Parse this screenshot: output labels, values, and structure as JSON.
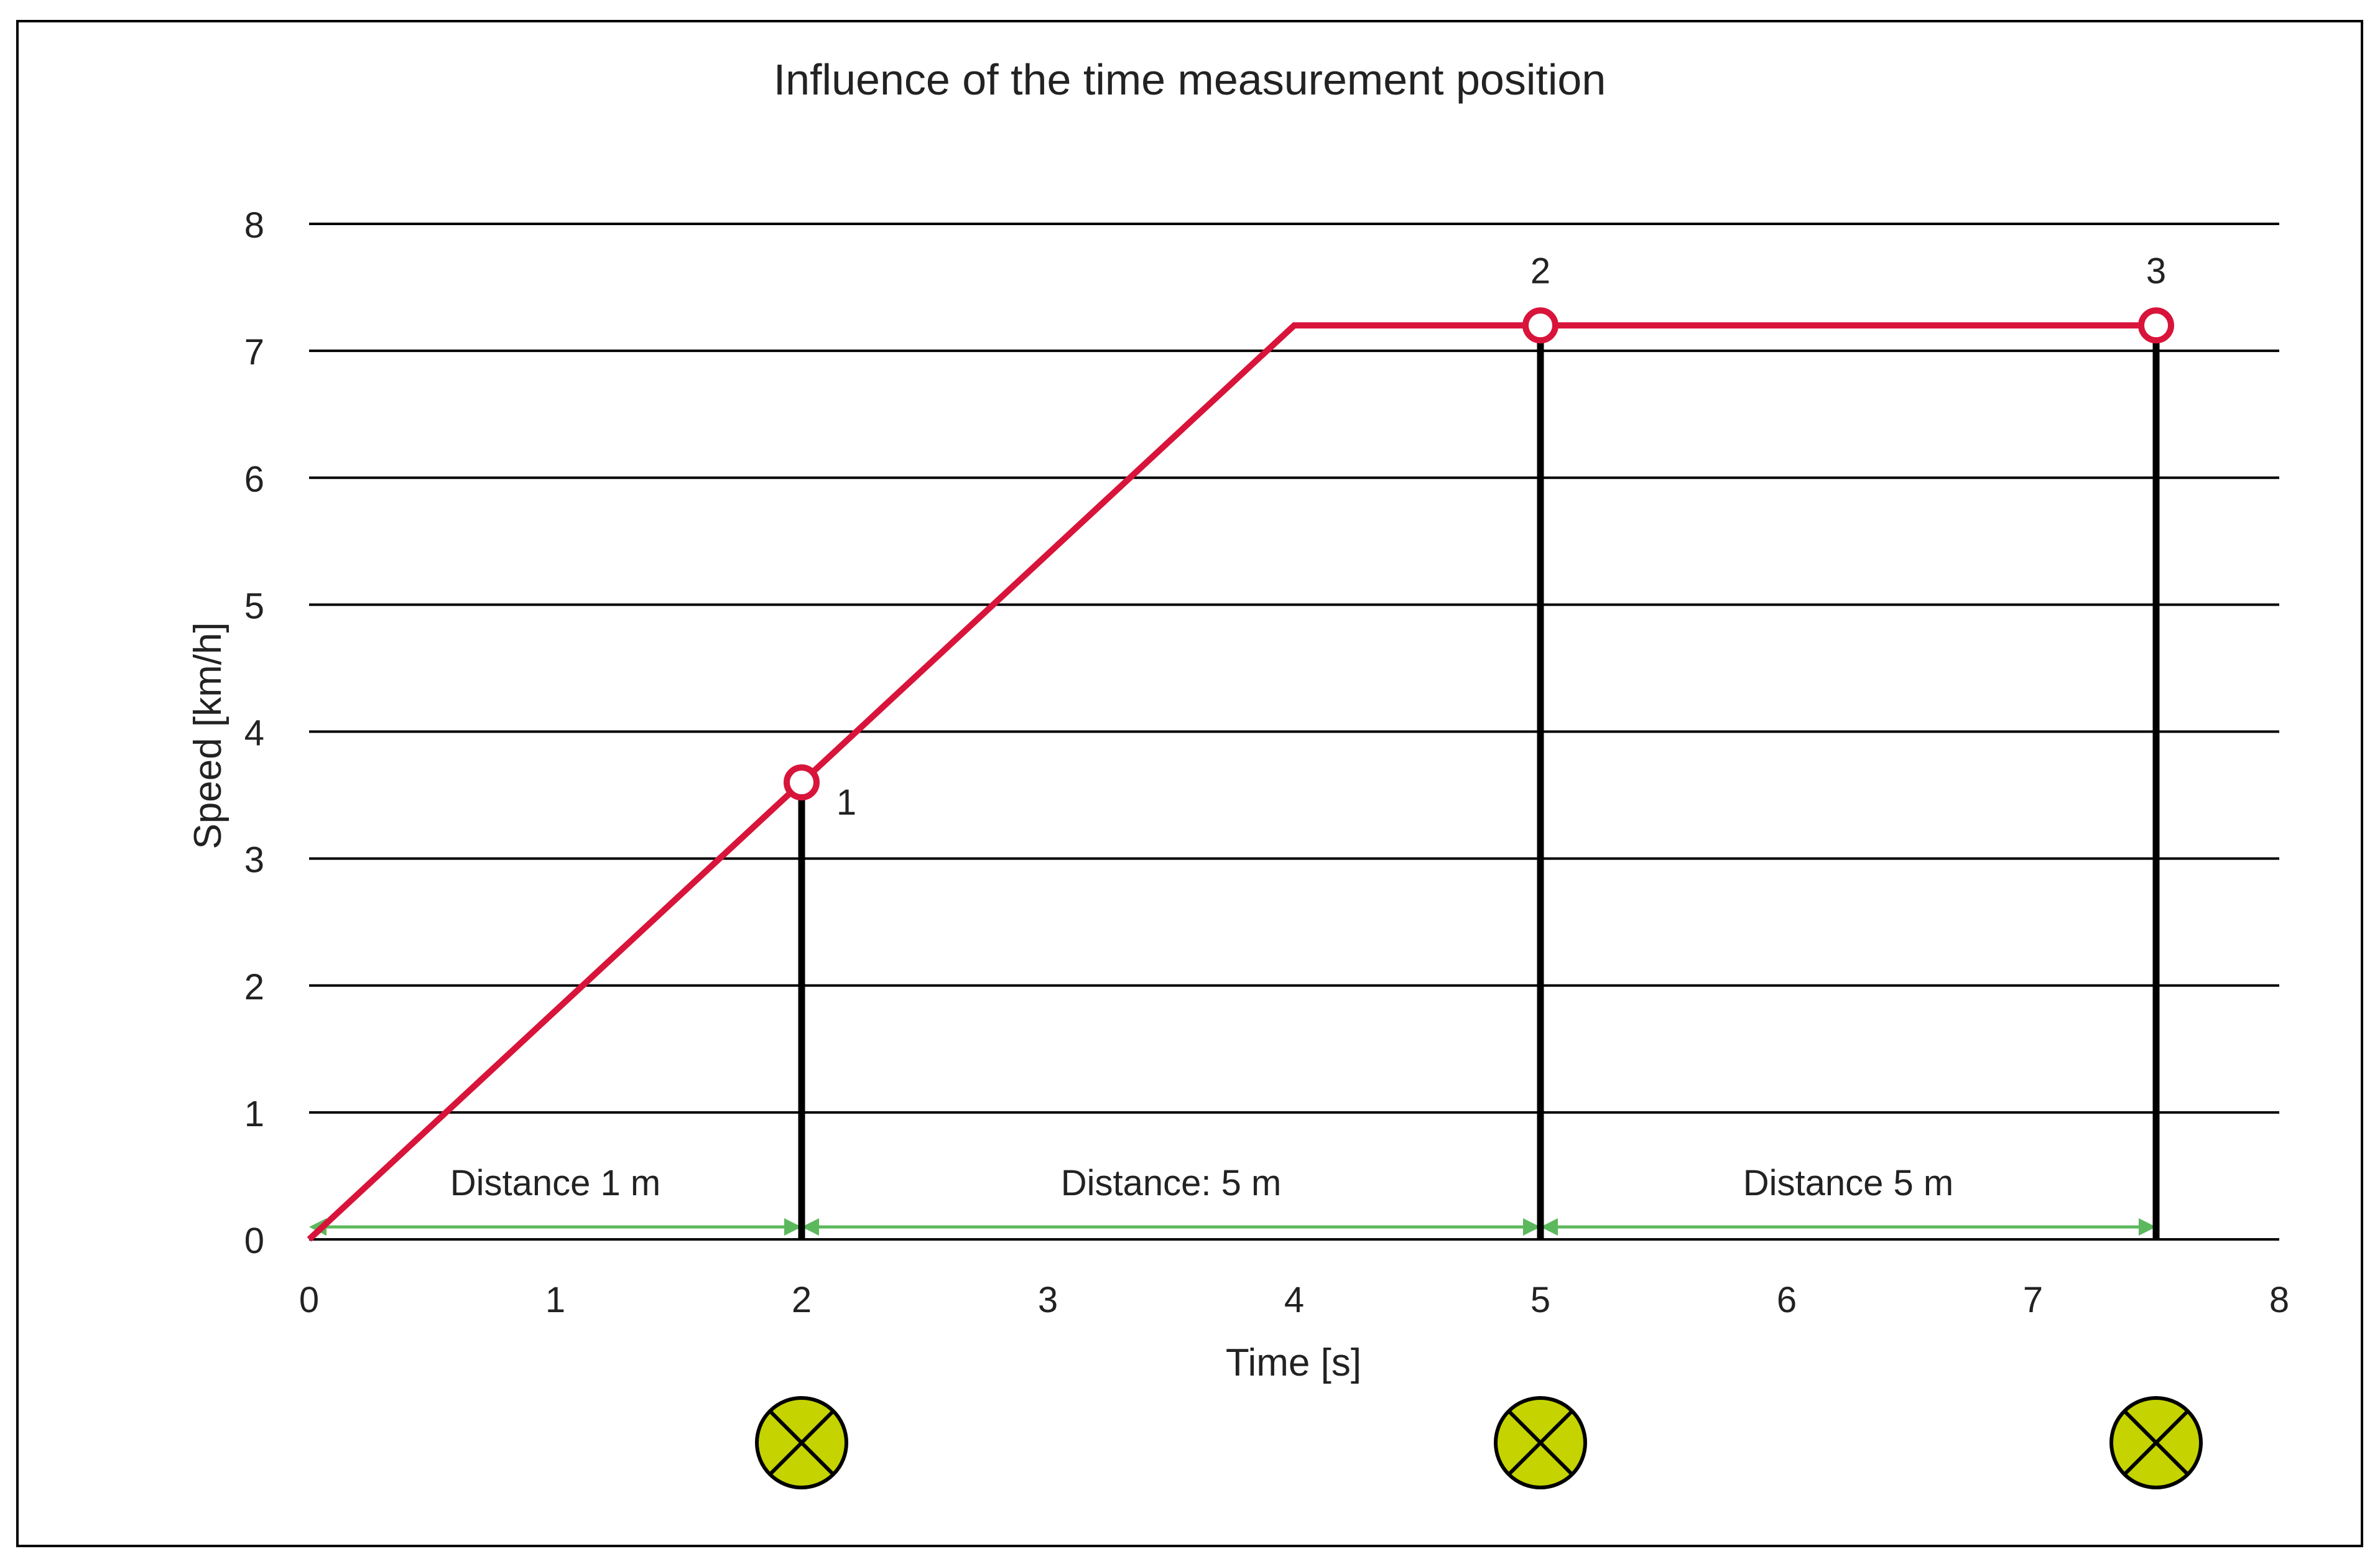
{
  "chart_data": {
    "type": "line",
    "title": "Influence of the time measurement position",
    "xlabel": "Time [s]",
    "ylabel": "Speed [km/h]",
    "xlim": [
      0,
      8
    ],
    "ylim": [
      0,
      8
    ],
    "x_ticks": [
      0,
      1,
      2,
      3,
      4,
      5,
      6,
      7,
      8
    ],
    "y_ticks": [
      0,
      1,
      2,
      3,
      4,
      5,
      6,
      7,
      8
    ],
    "grid": "horizontal",
    "series": [
      {
        "color": "#d8143a",
        "points": [
          [
            0,
            0
          ],
          [
            4,
            7.2
          ],
          [
            7.5,
            7.2
          ]
        ]
      }
    ],
    "markers": [
      {
        "label": "1",
        "x": 2,
        "y": 3.6
      },
      {
        "label": "2",
        "x": 5,
        "y": 7.2
      },
      {
        "label": "3",
        "x": 7.5,
        "y": 7.2
      }
    ],
    "distance_annotations": [
      {
        "label": "Distance 1 m",
        "x_start": 0,
        "x_end": 2
      },
      {
        "label": "Distance: 5 m",
        "x_start": 2,
        "x_end": 5
      },
      {
        "label": "Distance 5 m",
        "x_start": 5,
        "x_end": 7.5
      }
    ],
    "sensors": [
      2,
      5,
      7.5
    ],
    "colors": {
      "line": "#d8143a",
      "marker": "#d8143a",
      "arrow": "#5cb85c",
      "sensor_fill": "#c5d300",
      "grid": "#000000"
    }
  }
}
